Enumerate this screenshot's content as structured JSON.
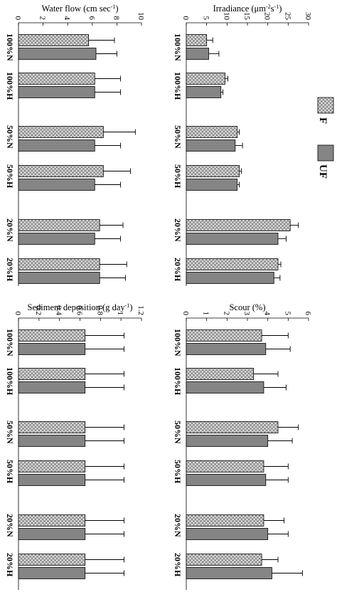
{
  "colors": {
    "solid": "#858585",
    "hatch_bg": "#dcdcdc",
    "hatch_line": "#7a7a7a",
    "axis": "#000000"
  },
  "legend": {
    "hatched": "F",
    "solid": "UF"
  },
  "chart_data": [
    {
      "type": "bar",
      "orientation": "horizontal-rotated",
      "title": "Irradiance (μm⁻²s⁻¹)",
      "title_parts": {
        "before": "Irradiance (μm",
        "sup1": "-2",
        "middle": "s",
        "sup2": "-1",
        "after": ")"
      },
      "categories": [
        "100%N",
        "100%H",
        "50%N",
        "50%H",
        "20%N",
        "20%H"
      ],
      "ticks": [
        0,
        5,
        10,
        15,
        20,
        25,
        30
      ],
      "ylim": [
        0,
        30
      ],
      "series": [
        {
          "name": "F",
          "values": [
            5.0,
            9.5,
            12.5,
            13.0,
            25.5,
            22.5
          ],
          "errors": [
            1.5,
            0.7,
            0.5,
            0.5,
            2.0,
            0.7
          ]
        },
        {
          "name": "UF",
          "values": [
            5.5,
            8.5,
            12.0,
            12.5,
            22.5,
            21.5
          ],
          "errors": [
            2.5,
            0.5,
            1.8,
            0.5,
            2.0,
            1.5
          ]
        }
      ]
    },
    {
      "type": "bar",
      "orientation": "horizontal-rotated",
      "title": "Water flow (cm sec⁻¹)",
      "title_parts": {
        "before": "Water flow (cm sec",
        "sup1": "-1",
        "middle": "",
        "sup2": "",
        "after": ")"
      },
      "categories": [
        "100%N",
        "100%H",
        "50%N",
        "50%H",
        "20%N",
        "20%H"
      ],
      "ticks": [
        0,
        2,
        4,
        6,
        8,
        10
      ],
      "ylim": [
        0,
        10
      ],
      "series": [
        {
          "name": "F",
          "values": [
            5.7,
            6.2,
            6.9,
            6.9,
            6.6,
            6.6
          ],
          "errors": [
            2.1,
            2.1,
            2.6,
            2.2,
            1.9,
            2.2
          ]
        },
        {
          "name": "UF",
          "values": [
            6.3,
            6.2,
            6.2,
            6.2,
            6.2,
            6.6
          ],
          "errors": [
            1.7,
            2.1,
            2.1,
            2.1,
            2.1,
            2.1
          ]
        }
      ]
    },
    {
      "type": "bar",
      "orientation": "horizontal-rotated",
      "title": "Scour (%)",
      "title_parts": {
        "before": "Scour (%)",
        "sup1": "",
        "middle": "",
        "sup2": "",
        "after": ""
      },
      "categories": [
        "100%N",
        "100%H",
        "50%N",
        "50%H",
        "20%N",
        "20%H"
      ],
      "ticks": [
        0,
        1,
        2,
        3,
        4,
        5,
        6
      ],
      "ylim": [
        0,
        6
      ],
      "series": [
        {
          "name": "F",
          "values": [
            3.7,
            3.3,
            4.5,
            3.8,
            3.8,
            3.7
          ],
          "errors": [
            1.3,
            1.2,
            1.0,
            1.2,
            1.0,
            0.8
          ]
        },
        {
          "name": "UF",
          "values": [
            3.9,
            3.8,
            4.0,
            3.9,
            4.0,
            4.2
          ],
          "errors": [
            1.2,
            1.1,
            1.2,
            1.1,
            1.0,
            1.5
          ]
        }
      ]
    },
    {
      "type": "bar",
      "orientation": "horizontal-rotated",
      "title": "Sediment deposition (g day⁻¹)",
      "title_parts": {
        "before": "Sediment deposition (g day",
        "sup1": "-1",
        "middle": "",
        "sup2": "",
        "after": ")"
      },
      "categories": [
        "100%N",
        "100%H",
        "50%N",
        "50%H",
        "20%N",
        "20%H"
      ],
      "ticks": [
        "0",
        "0.2",
        "0.4",
        "0.6",
        "0.8",
        "1",
        "1.2"
      ],
      "ylim": [
        0,
        1.2
      ],
      "series": [
        {
          "name": "F",
          "values": [
            0.65,
            0.65,
            0.65,
            0.65,
            0.65,
            0.65
          ],
          "errors": [
            0.38,
            0.38,
            0.38,
            0.38,
            0.38,
            0.38
          ]
        },
        {
          "name": "UF",
          "values": [
            0.65,
            0.65,
            0.65,
            0.65,
            0.65,
            0.65
          ],
          "errors": [
            0.38,
            0.38,
            0.38,
            0.38,
            0.38,
            0.38
          ]
        }
      ]
    }
  ]
}
